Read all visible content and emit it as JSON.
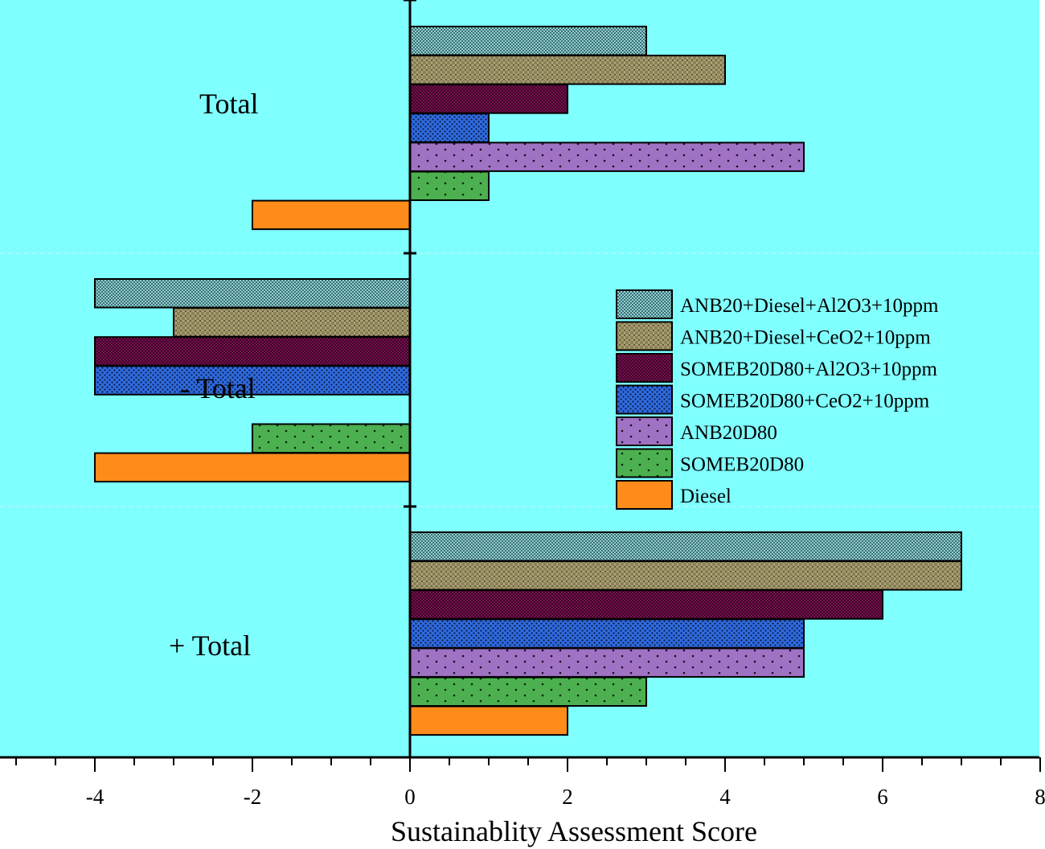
{
  "chart_data": {
    "type": "bar",
    "orientation": "horizontal",
    "xlabel": "Sustainablity Assessment Score",
    "xlim": [
      -5.2,
      8
    ],
    "xticks": [
      -4,
      -2,
      0,
      2,
      4,
      6,
      8
    ],
    "xtick_labels": [
      "-4",
      "-2",
      "0",
      "2",
      "4",
      "6",
      "8"
    ],
    "categories": [
      "Total",
      "- Total",
      "+ Total"
    ],
    "series": [
      {
        "name": "ANB20+Diesel+Al2O3+10ppm",
        "values": [
          3,
          -4,
          7
        ],
        "color": "#8fd0d2",
        "pattern": "checker"
      },
      {
        "name": "ANB20+Diesel+CeO2+10ppm",
        "values": [
          4,
          -3,
          7
        ],
        "color": "#8c8258",
        "pattern": "crosshatch"
      },
      {
        "name": "SOMEB20D80+Al2O3+10ppm",
        "values": [
          2,
          -4,
          6
        ],
        "color": "#7a1050",
        "pattern": "dense"
      },
      {
        "name": "SOMEB20D80+CeO2+10ppm",
        "values": [
          1,
          -4,
          5
        ],
        "color": "#2f6be0",
        "pattern": "dots-dense"
      },
      {
        "name": "ANB20D80",
        "values": [
          5,
          0,
          5
        ],
        "color": "#9f72c4",
        "pattern": "dots-sparse"
      },
      {
        "name": "SOMEB20D80",
        "values": [
          1,
          -2,
          3
        ],
        "color": "#4cb050",
        "pattern": "dots-sparse"
      },
      {
        "name": "Diesel",
        "values": [
          -2,
          -4,
          2
        ],
        "color": "#ff8c1a",
        "pattern": "none"
      }
    ],
    "background": "#80ffff",
    "grid": false,
    "legend_position": "right-middle"
  }
}
